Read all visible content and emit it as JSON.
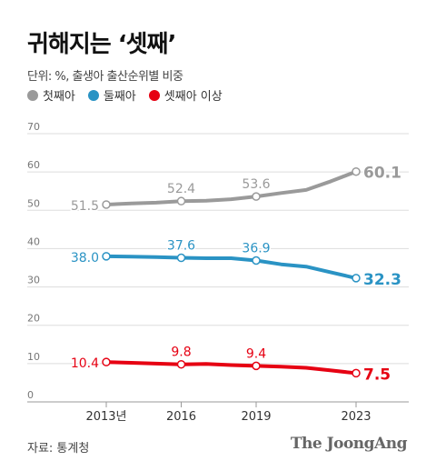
{
  "title": "귀해지는 ‘셋째’",
  "subtitle": "단위: %, 출생아 출산순위별 비중",
  "source": "자료: 통계청",
  "brand": "The JoongAng",
  "colors": {
    "first": "#9a9a9a",
    "second": "#2a93c4",
    "third": "#e60012",
    "grid": "#dddddd",
    "axis": "#999999"
  },
  "chart_data": {
    "type": "line",
    "x": [
      2013,
      2014,
      2015,
      2016,
      2017,
      2018,
      2019,
      2020,
      2021,
      2022,
      2023
    ],
    "x_ticks": [
      {
        "x": 2013,
        "label": "2013년"
      },
      {
        "x": 2016,
        "label": "2016"
      },
      {
        "x": 2019,
        "label": "2019"
      },
      {
        "x": 2023,
        "label": "2023"
      }
    ],
    "y_ticks": [
      "70",
      "60",
      "50",
      "40",
      "30",
      "20",
      "10",
      "0"
    ],
    "ylim": [
      0,
      70
    ],
    "grid": true,
    "legend_position": "top-left",
    "series": [
      {
        "key": "first",
        "name": "첫째아",
        "color": "#9a9a9a",
        "values": [
          51.5,
          51.8,
          52.0,
          52.4,
          52.5,
          52.9,
          53.6,
          54.5,
          55.3,
          57.6,
          60.1
        ],
        "labels": [
          {
            "x": 2013,
            "text": "51.5"
          },
          {
            "x": 2016,
            "text": "52.4"
          },
          {
            "x": 2019,
            "text": "53.6"
          },
          {
            "x": 2023,
            "text": "60.1"
          }
        ]
      },
      {
        "key": "second",
        "name": "둘째아",
        "color": "#2a93c4",
        "values": [
          38.0,
          37.9,
          37.8,
          37.6,
          37.5,
          37.5,
          36.9,
          35.9,
          35.3,
          33.8,
          32.3
        ],
        "labels": [
          {
            "x": 2013,
            "text": "38.0"
          },
          {
            "x": 2016,
            "text": "37.6"
          },
          {
            "x": 2019,
            "text": "36.9"
          },
          {
            "x": 2023,
            "text": "32.3"
          }
        ]
      },
      {
        "key": "third",
        "name": "셋째아 이상",
        "color": "#e60012",
        "values": [
          10.4,
          10.2,
          10.0,
          9.8,
          9.9,
          9.6,
          9.4,
          9.2,
          8.9,
          8.2,
          7.5
        ],
        "labels": [
          {
            "x": 2013,
            "text": "10.4"
          },
          {
            "x": 2016,
            "text": "9.8"
          },
          {
            "x": 2019,
            "text": "9.4"
          },
          {
            "x": 2023,
            "text": "7.5"
          }
        ]
      }
    ]
  }
}
